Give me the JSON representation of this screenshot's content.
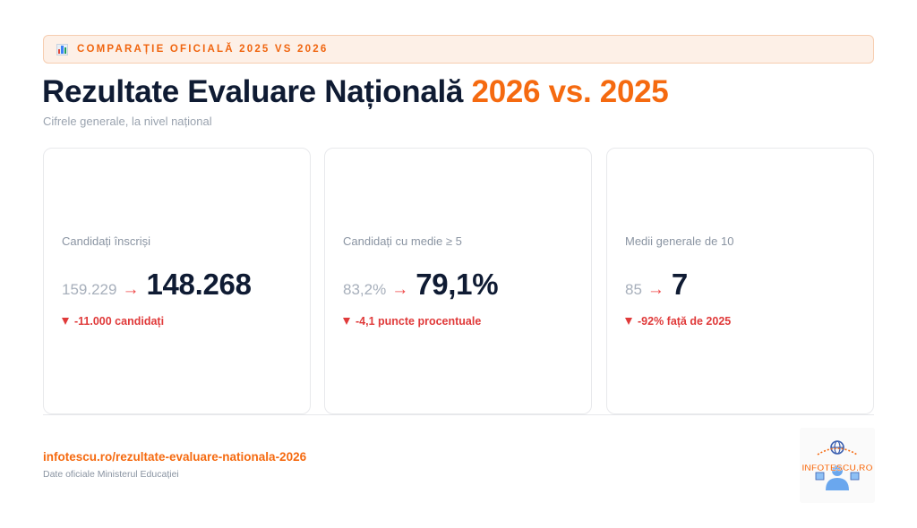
{
  "badge": {
    "icon": "bar-chart-icon",
    "text": "COMPARAȚIE OFICIALĂ 2025 VS 2026"
  },
  "header": {
    "title_main": "Rezultate Evaluare Națională ",
    "title_accent": "2026 vs. 2025",
    "subtitle": "Cifrele generale, la nivel național"
  },
  "cards": [
    {
      "label": "Candidați înscriși",
      "old_value": "159.229",
      "arrow": "→",
      "new_value": "148.268",
      "delta": "-11.000 candidați"
    },
    {
      "label": "Candidați cu medie ≥ 5",
      "old_value": "83,2%",
      "arrow": "→",
      "new_value": "79,1%",
      "delta": "-4,1 puncte procentuale"
    },
    {
      "label": "Medii generale de 10",
      "old_value": "85",
      "arrow": "→",
      "new_value": "7",
      "delta": "-92% față de 2025"
    }
  ],
  "footer": {
    "link": "infotescu.ro/rezultate-evaluare-nationala-2026",
    "source": "Date oficiale Ministerul Educației"
  },
  "logo": {
    "text": "INFOTESCU.RO",
    "icon": "globe-student-icon"
  },
  "colors": {
    "accent": "#f56a10",
    "negative": "#e03a3a",
    "title": "#0f1b33"
  }
}
